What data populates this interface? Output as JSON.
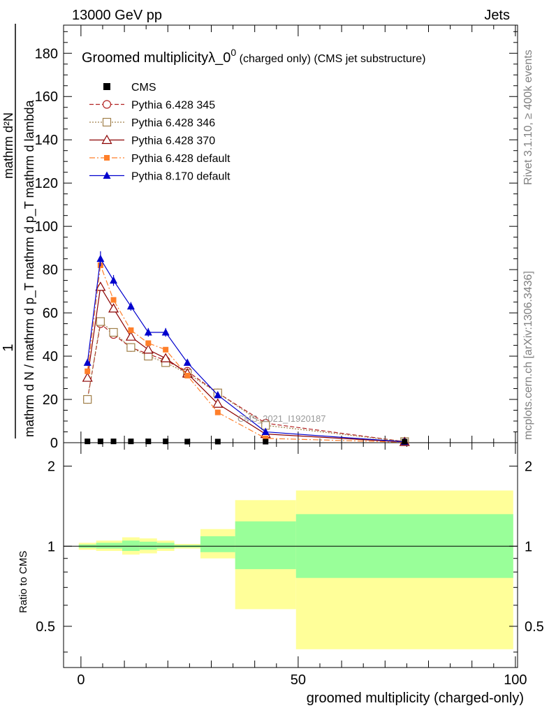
{
  "header": {
    "left": "13000 GeV pp",
    "right": "Jets"
  },
  "side_labels": {
    "rivet": "Rivet 3.1.10, ≥ 400k events",
    "mcplots": "mcplots.cern.ch [arXiv:1306.3436]"
  },
  "chart_data": {
    "type": "line",
    "title_main": "Groomed multiplicityλ_0",
    "title_sup": "0",
    "title_suffix": " (charged only) (CMS jet substructure)",
    "watermark": "CMS_2021_I1920187",
    "ylabel_num": "1",
    "ylabel_den": "mathrm d N / mathrm d p_T mathrm d p_T mathrm d lambda",
    "ylabel_top": "mathrm d²N",
    "xlabel": "groomed multiplicity (charged-only)",
    "ratio_ylabel": "Ratio to CMS",
    "xlim": [
      -4,
      100.5
    ],
    "ylim": [
      0,
      193
    ],
    "ratio_ylim": [
      0.35,
      2.45
    ],
    "x_ticks": [
      "0",
      "50",
      "100"
    ],
    "y_ticks": [
      "0",
      "20",
      "40",
      "60",
      "80",
      "100",
      "120",
      "140",
      "160",
      "180"
    ],
    "ratio_ticks": [
      "0.5",
      "1",
      "2"
    ],
    "cms": {
      "name": "CMS",
      "x": [
        1.5,
        4.5,
        7.5,
        11.5,
        15.5,
        19.5,
        24.5,
        31.5,
        42.5,
        74.5
      ],
      "y": [
        0.6,
        0.6,
        0.6,
        0.6,
        0.6,
        0.6,
        0.5,
        0.5,
        0.3,
        0.05
      ]
    },
    "series": [
      {
        "name": "Pythia 6.428 345",
        "color": "#b22222",
        "marker": "circle-open",
        "dash": "dashed",
        "x": [
          1.5,
          4.5,
          7.5,
          11.5,
          15.5,
          19.5,
          24.5,
          31.5,
          42.5,
          74.5
        ],
        "y": [
          20,
          55,
          50,
          44,
          41,
          38,
          33,
          23,
          9,
          0.5
        ]
      },
      {
        "name": "Pythia 6.428 346",
        "color": "#a0804a",
        "marker": "square-open",
        "dash": "dotted",
        "x": [
          1.5,
          4.5,
          7.5,
          11.5,
          15.5,
          19.5,
          24.5,
          31.5,
          42.5,
          74.5
        ],
        "y": [
          20,
          56,
          51,
          44,
          40,
          37,
          32,
          23,
          8,
          0.5
        ]
      },
      {
        "name": "Pythia 6.428 370",
        "color": "#8b0000",
        "marker": "triangle-open",
        "dash": "solid",
        "x": [
          1.5,
          4.5,
          7.5,
          11.5,
          15.5,
          19.5,
          24.5,
          31.5,
          42.5,
          74.5
        ],
        "y": [
          30,
          72,
          62,
          49,
          43,
          39,
          32,
          18,
          4,
          0.3
        ]
      },
      {
        "name": "Pythia 6.428 default",
        "color": "#ff7f2a",
        "marker": "square-filled",
        "dash": "dashdot",
        "x": [
          1.5,
          4.5,
          7.5,
          11.5,
          15.5,
          19.5,
          24.5,
          31.5,
          42.5,
          74.5
        ],
        "y": [
          33,
          82,
          66,
          52,
          46,
          43,
          31,
          14,
          2,
          0.2
        ]
      },
      {
        "name": "Pythia 8.170 default",
        "color": "#0000cd",
        "marker": "triangle-filled",
        "dash": "solid",
        "x": [
          1.5,
          4.5,
          7.5,
          11.5,
          15.5,
          19.5,
          24.5,
          31.5,
          42.5,
          74.5
        ],
        "y": [
          37,
          85,
          75,
          63,
          51,
          51,
          37,
          22,
          5,
          0.4
        ],
        "err": [
          1.5,
          3.5,
          2.5,
          2,
          2,
          2,
          1,
          1,
          0.5,
          0.1
        ]
      }
    ],
    "ratio_bands": [
      {
        "x0": -0.5,
        "x1": 3.5,
        "y_lo": 0.97,
        "y_hi": 1.03,
        "g_lo": 0.985,
        "g_hi": 1.015
      },
      {
        "x0": 3.5,
        "x1": 9.5,
        "y_lo": 0.96,
        "y_hi": 1.05,
        "g_lo": 0.98,
        "g_hi": 1.03
      },
      {
        "x0": 9.5,
        "x1": 13.5,
        "y_lo": 0.93,
        "y_hi": 1.08,
        "g_lo": 0.96,
        "g_hi": 1.05
      },
      {
        "x0": 13.5,
        "x1": 17.5,
        "y_lo": 0.94,
        "y_hi": 1.07,
        "g_lo": 0.97,
        "g_hi": 1.04
      },
      {
        "x0": 17.5,
        "x1": 21.5,
        "y_lo": 0.96,
        "y_hi": 1.05,
        "g_lo": 0.98,
        "g_hi": 1.03
      },
      {
        "x0": 21.5,
        "x1": 27.5,
        "y_lo": 0.98,
        "y_hi": 1.02,
        "g_lo": 0.99,
        "g_hi": 1.01
      },
      {
        "x0": 27.5,
        "x1": 35.5,
        "y_lo": 0.9,
        "y_hi": 1.16,
        "g_lo": 0.95,
        "g_hi": 1.09
      },
      {
        "x0": 35.5,
        "x1": 49.5,
        "y_lo": 0.58,
        "y_hi": 1.49,
        "g_lo": 0.82,
        "g_hi": 1.24
      },
      {
        "x0": 49.5,
        "x1": 99.5,
        "y_lo": 0.41,
        "y_hi": 1.62,
        "g_lo": 0.76,
        "g_hi": 1.32
      }
    ]
  }
}
